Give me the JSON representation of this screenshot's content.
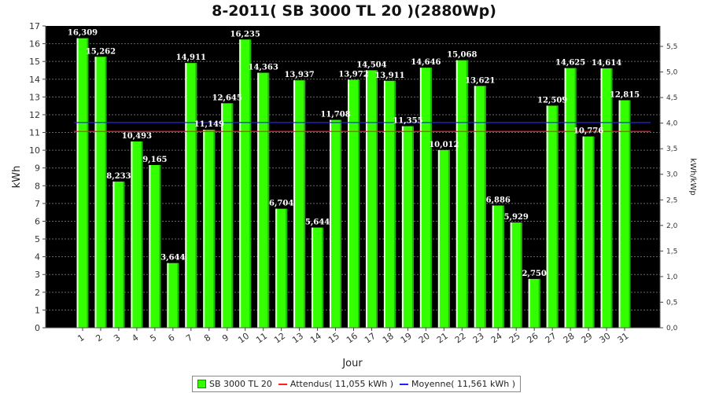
{
  "chart_data": {
    "type": "bar",
    "title": "8-2011( SB 3000 TL 20 )(2880Wp)",
    "xlabel": "Jour",
    "ylabel": "kWh",
    "ylabel_right": "kWh/kWp",
    "ylim": [
      0,
      17
    ],
    "ylim_right": [
      0,
      5.9
    ],
    "yticks": [
      "0",
      "1",
      "2",
      "3",
      "4",
      "5",
      "6",
      "7",
      "8",
      "9",
      "10",
      "11",
      "12",
      "13",
      "14",
      "15",
      "16",
      "17"
    ],
    "yticks_right": [
      "0,0",
      "0,5",
      "1,0",
      "1,5",
      "2,0",
      "2,5",
      "3,0",
      "3,5",
      "4,0",
      "4,5",
      "5,0",
      "5,5"
    ],
    "yticks_right_values": [
      0,
      0.5,
      1,
      1.5,
      2,
      2.5,
      3,
      3.5,
      4,
      4.5,
      5,
      5.5
    ],
    "categories": [
      "1",
      "2",
      "3",
      "4",
      "5",
      "6",
      "7",
      "8",
      "9",
      "10",
      "11",
      "12",
      "13",
      "14",
      "15",
      "16",
      "17",
      "18",
      "19",
      "20",
      "21",
      "22",
      "23",
      "24",
      "25",
      "26",
      "27",
      "28",
      "29",
      "30",
      "31"
    ],
    "values": [
      16.309,
      15.262,
      8.233,
      10.493,
      9.165,
      3.644,
      14.911,
      11.149,
      12.645,
      16.235,
      14.363,
      6.704,
      13.937,
      5.644,
      11.708,
      13.972,
      14.504,
      13.911,
      11.355,
      14.646,
      10.012,
      15.068,
      13.621,
      6.886,
      5.929,
      2.75,
      12.509,
      14.625,
      10.776,
      14.614,
      12.815
    ],
    "data_labels": [
      "16,309",
      "15,262",
      "8,233",
      "10,493",
      "9,165",
      "3,644",
      "14,911",
      "11,149",
      "12,645",
      "16,235",
      "14,363",
      "6,704",
      "13,937",
      "5,644",
      "11,708",
      "13,972",
      "14,504",
      "13,911",
      "11,355",
      "14,646",
      "10,012",
      "15,068",
      "13,621",
      "6,886",
      "5,929",
      "2,750",
      "12,509",
      "14,625",
      "10,776",
      "14,614",
      "12,815"
    ],
    "series_name": "SB 3000 TL 20",
    "reference_lines": [
      {
        "name": "Attendus( 11,055 kWh )",
        "value": 11.055,
        "color": "#ff2020"
      },
      {
        "name": "Moyenne( 11,561 kWh )",
        "value": 11.561,
        "color": "#2020ff"
      }
    ],
    "colors": {
      "bar": "#33ff00",
      "bar_shade": "#22b800",
      "bar_highlight": "#e8ffe0",
      "plot_bg": "#000000",
      "grid": "#666666"
    },
    "grid": true,
    "legend_position": "bottom"
  }
}
